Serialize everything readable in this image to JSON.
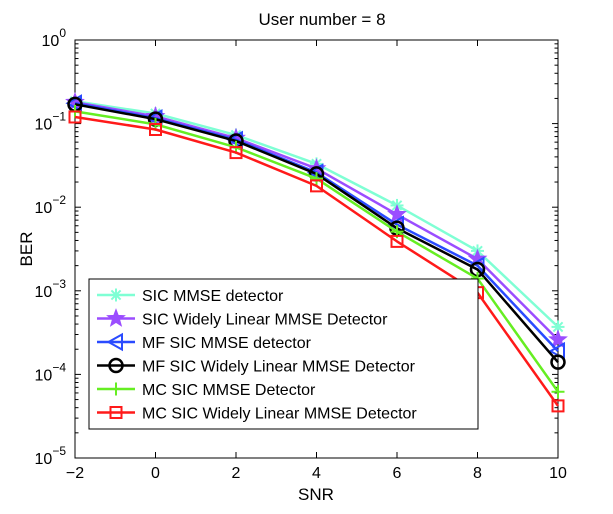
{
  "chart_data": {
    "type": "line",
    "title": "User number = 8",
    "xlabel": "SNR",
    "ylabel": "BER",
    "x": [
      -2,
      0,
      2,
      4,
      6,
      8,
      10
    ],
    "xlim": [
      -2,
      10
    ],
    "ylim": [
      1e-05,
      1
    ],
    "yscale": "log",
    "xticks": [
      -2,
      0,
      2,
      4,
      6,
      8,
      10
    ],
    "xtick_labels": [
      "−2",
      "0",
      "2",
      "4",
      "6",
      "8",
      "10"
    ],
    "yticks": [
      1e-05,
      0.0001,
      0.001,
      0.01,
      0.1,
      1
    ],
    "ytick_labels": [
      {
        "base": "10",
        "exp": "−5"
      },
      {
        "base": "10",
        "exp": "−4"
      },
      {
        "base": "10",
        "exp": "−3"
      },
      {
        "base": "10",
        "exp": "−2"
      },
      {
        "base": "10",
        "exp": "−1"
      },
      {
        "base": "10",
        "exp": "0"
      }
    ],
    "legend_position": "bottom-left",
    "series": [
      {
        "name": "SIC MMSE detector",
        "color": "#7fffd4",
        "marker": "asterisk",
        "values": [
          0.185,
          0.132,
          0.073,
          0.033,
          0.0105,
          0.003,
          0.00037
        ]
      },
      {
        "name": "SIC Widely Linear MMSE Detector",
        "color": "#9b4dff",
        "marker": "star",
        "values": [
          0.18,
          0.122,
          0.067,
          0.029,
          0.0082,
          0.0024,
          0.00026
        ]
      },
      {
        "name": "MF SIC MMSE detector",
        "color": "#2a4bff",
        "marker": "triangle-left",
        "values": [
          0.175,
          0.116,
          0.064,
          0.026,
          0.0062,
          0.002,
          0.00019
        ]
      },
      {
        "name": "MF SIC Widely Linear MMSE Detector",
        "color": "#000000",
        "marker": "circle",
        "values": [
          0.17,
          0.113,
          0.062,
          0.025,
          0.0056,
          0.0018,
          0.00014
        ]
      },
      {
        "name": "MC SIC MMSE Detector",
        "color": "#66ee22",
        "marker": "plus",
        "values": [
          0.14,
          0.098,
          0.052,
          0.022,
          0.0051,
          0.0014,
          6.2e-05
        ]
      },
      {
        "name": "MC SIC Widely Linear MMSE Detector",
        "color": "#ff1a1a",
        "marker": "square",
        "values": [
          0.12,
          0.085,
          0.045,
          0.018,
          0.0039,
          0.00095,
          4.2e-05
        ]
      }
    ]
  }
}
